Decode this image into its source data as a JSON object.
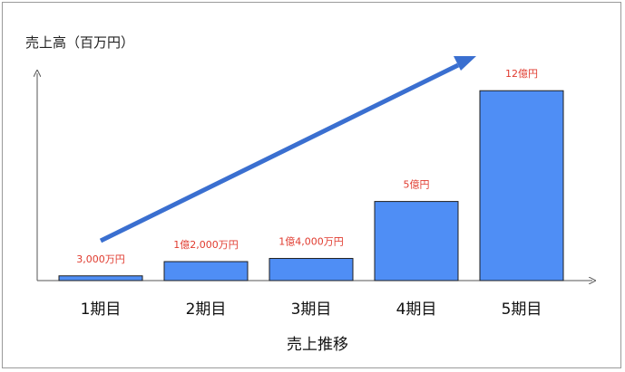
{
  "chart_data": {
    "type": "bar",
    "ylabel": "売上高（百万円）",
    "xlabel": "売上推移",
    "categories": [
      "1期目",
      "2期目",
      "3期目",
      "4期目",
      "5期目"
    ],
    "values": [
      30,
      120,
      140,
      500,
      1200
    ],
    "data_labels": [
      "3,000万円",
      "1億2,000万円",
      "1億4,000万円",
      "5億円",
      "12億円"
    ],
    "ylim": [
      0,
      1350
    ],
    "grid": false,
    "trend_arrow": true
  },
  "colors": {
    "bar": "#4f8ef5",
    "bar_stroke": "#1f1f1f",
    "arrow": "#3a6fd0",
    "data_label": "#e03b2f",
    "axis": "#555555"
  }
}
